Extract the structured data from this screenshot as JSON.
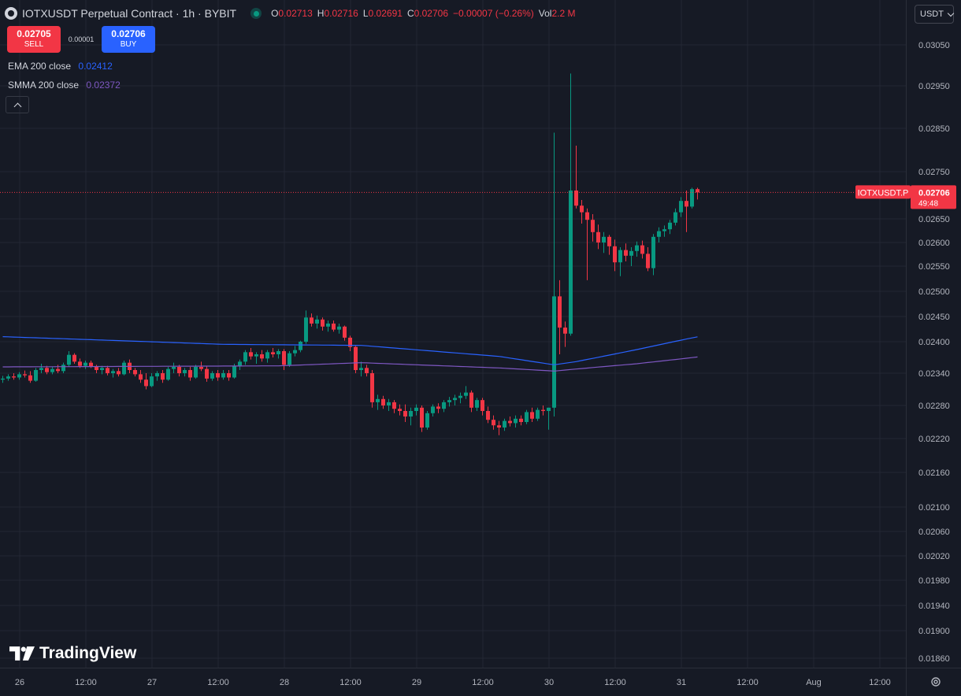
{
  "header": {
    "title": "IOTXUSDT Perpetual Contract · 1h · BYBIT",
    "ohlc": [
      {
        "key": "O",
        "value": "0.02713"
      },
      {
        "key": "H",
        "value": "0.02716"
      },
      {
        "key": "L",
        "value": "0.02691"
      },
      {
        "key": "C",
        "value": "0.02706"
      }
    ],
    "change": "−0.00007 (−0.26%)",
    "vol_label": "Vol",
    "vol_value": "2.2 M"
  },
  "trade": {
    "sell_price": "0.02705",
    "sell_label": "SELL",
    "spread": "0.00001",
    "buy_price": "0.02706",
    "buy_label": "BUY"
  },
  "indicators": [
    {
      "name": "EMA 200 close",
      "value": "0.02412",
      "color": "#2962ff"
    },
    {
      "name": "SMMA 200 close",
      "value": "0.02372",
      "color": "#7e57c2"
    }
  ],
  "currency": "USDT",
  "brand": "TradingView",
  "colors": {
    "up": "#089981",
    "down": "#f23645",
    "background": "#161a25",
    "grid": "#232733",
    "axis_text": "#b2b5be"
  },
  "chart_data": {
    "type": "candlestick",
    "symbol": "IOTXUSDT.P",
    "interval": "1h",
    "last_price": "0.02706",
    "countdown": "49:48",
    "y_ticks": [
      "0.03050",
      "0.02950",
      "0.02850",
      "0.02750",
      "0.02650",
      "0.02600",
      "0.02550",
      "0.02500",
      "0.02450",
      "0.02400",
      "0.02340",
      "0.02280",
      "0.02220",
      "0.02160",
      "0.02100",
      "0.02060",
      "0.02020",
      "0.01980",
      "0.01940",
      "0.01900",
      "0.01860"
    ],
    "x_ticks": [
      "26",
      "12:00",
      "27",
      "12:00",
      "28",
      "12:00",
      "29",
      "12:00",
      "30",
      "12:00",
      "31",
      "12:00",
      "Aug",
      "12:00"
    ],
    "grid": true,
    "candles": [
      {
        "o": 0.02328,
        "h": 0.02335,
        "l": 0.02322,
        "c": 0.0233
      },
      {
        "o": 0.0233,
        "h": 0.02338,
        "l": 0.02326,
        "c": 0.02334
      },
      {
        "o": 0.02334,
        "h": 0.0234,
        "l": 0.02328,
        "c": 0.02332
      },
      {
        "o": 0.02332,
        "h": 0.02342,
        "l": 0.02328,
        "c": 0.02338
      },
      {
        "o": 0.02338,
        "h": 0.02345,
        "l": 0.02332,
        "c": 0.02336
      },
      {
        "o": 0.02336,
        "h": 0.02344,
        "l": 0.02322,
        "c": 0.02326
      },
      {
        "o": 0.02326,
        "h": 0.0235,
        "l": 0.02324,
        "c": 0.02346
      },
      {
        "o": 0.02346,
        "h": 0.02358,
        "l": 0.0234,
        "c": 0.0235
      },
      {
        "o": 0.0235,
        "h": 0.02354,
        "l": 0.02338,
        "c": 0.02342
      },
      {
        "o": 0.02342,
        "h": 0.02352,
        "l": 0.02338,
        "c": 0.02348
      },
      {
        "o": 0.02348,
        "h": 0.02356,
        "l": 0.0234,
        "c": 0.02344
      },
      {
        "o": 0.02344,
        "h": 0.0236,
        "l": 0.0234,
        "c": 0.02356
      },
      {
        "o": 0.02356,
        "h": 0.02382,
        "l": 0.02352,
        "c": 0.02375
      },
      {
        "o": 0.02375,
        "h": 0.02378,
        "l": 0.02358,
        "c": 0.02362
      },
      {
        "o": 0.02362,
        "h": 0.02368,
        "l": 0.0235,
        "c": 0.02354
      },
      {
        "o": 0.02354,
        "h": 0.02364,
        "l": 0.02348,
        "c": 0.0236
      },
      {
        "o": 0.0236,
        "h": 0.02364,
        "l": 0.0235,
        "c": 0.02352
      },
      {
        "o": 0.02352,
        "h": 0.02356,
        "l": 0.0234,
        "c": 0.02346
      },
      {
        "o": 0.02346,
        "h": 0.02354,
        "l": 0.02338,
        "c": 0.0235
      },
      {
        "o": 0.0235,
        "h": 0.02354,
        "l": 0.02336,
        "c": 0.0234
      },
      {
        "o": 0.0234,
        "h": 0.02348,
        "l": 0.02332,
        "c": 0.02344
      },
      {
        "o": 0.02344,
        "h": 0.0235,
        "l": 0.02334,
        "c": 0.02338
      },
      {
        "o": 0.02338,
        "h": 0.02364,
        "l": 0.02336,
        "c": 0.0236
      },
      {
        "o": 0.0236,
        "h": 0.02366,
        "l": 0.0234,
        "c": 0.02346
      },
      {
        "o": 0.02346,
        "h": 0.0235,
        "l": 0.02334,
        "c": 0.02338
      },
      {
        "o": 0.02338,
        "h": 0.02346,
        "l": 0.02322,
        "c": 0.02328
      },
      {
        "o": 0.02328,
        "h": 0.0234,
        "l": 0.0231,
        "c": 0.02316
      },
      {
        "o": 0.02316,
        "h": 0.0234,
        "l": 0.02314,
        "c": 0.02334
      },
      {
        "o": 0.02334,
        "h": 0.02344,
        "l": 0.02326,
        "c": 0.0234
      },
      {
        "o": 0.0234,
        "h": 0.02346,
        "l": 0.02322,
        "c": 0.02328
      },
      {
        "o": 0.02328,
        "h": 0.02352,
        "l": 0.02326,
        "c": 0.02348
      },
      {
        "o": 0.02348,
        "h": 0.0236,
        "l": 0.0234,
        "c": 0.02352
      },
      {
        "o": 0.02352,
        "h": 0.02356,
        "l": 0.02334,
        "c": 0.0234
      },
      {
        "o": 0.0234,
        "h": 0.0235,
        "l": 0.02334,
        "c": 0.02346
      },
      {
        "o": 0.02346,
        "h": 0.02352,
        "l": 0.02326,
        "c": 0.02332
      },
      {
        "o": 0.02332,
        "h": 0.02356,
        "l": 0.0233,
        "c": 0.02352
      },
      {
        "o": 0.02352,
        "h": 0.02362,
        "l": 0.02344,
        "c": 0.02348
      },
      {
        "o": 0.02348,
        "h": 0.02354,
        "l": 0.02324,
        "c": 0.0233
      },
      {
        "o": 0.0233,
        "h": 0.02344,
        "l": 0.02326,
        "c": 0.0234
      },
      {
        "o": 0.0234,
        "h": 0.02346,
        "l": 0.02326,
        "c": 0.02332
      },
      {
        "o": 0.02332,
        "h": 0.02346,
        "l": 0.02328,
        "c": 0.0234
      },
      {
        "o": 0.0234,
        "h": 0.02346,
        "l": 0.02326,
        "c": 0.02332
      },
      {
        "o": 0.02332,
        "h": 0.02358,
        "l": 0.0233,
        "c": 0.02354
      },
      {
        "o": 0.02354,
        "h": 0.02366,
        "l": 0.02346,
        "c": 0.02362
      },
      {
        "o": 0.02362,
        "h": 0.02384,
        "l": 0.02356,
        "c": 0.0238
      },
      {
        "o": 0.0238,
        "h": 0.02388,
        "l": 0.02366,
        "c": 0.02372
      },
      {
        "o": 0.02372,
        "h": 0.0238,
        "l": 0.02358,
        "c": 0.02376
      },
      {
        "o": 0.02376,
        "h": 0.02384,
        "l": 0.02362,
        "c": 0.02368
      },
      {
        "o": 0.02368,
        "h": 0.02384,
        "l": 0.0236,
        "c": 0.0238
      },
      {
        "o": 0.0238,
        "h": 0.02388,
        "l": 0.0237,
        "c": 0.02376
      },
      {
        "o": 0.02376,
        "h": 0.02386,
        "l": 0.02368,
        "c": 0.02382
      },
      {
        "o": 0.02382,
        "h": 0.02386,
        "l": 0.02346,
        "c": 0.02356
      },
      {
        "o": 0.02356,
        "h": 0.02382,
        "l": 0.02352,
        "c": 0.02378
      },
      {
        "o": 0.02378,
        "h": 0.02392,
        "l": 0.02372,
        "c": 0.02384
      },
      {
        "o": 0.02384,
        "h": 0.02402,
        "l": 0.0238,
        "c": 0.024
      },
      {
        "o": 0.024,
        "h": 0.02462,
        "l": 0.02396,
        "c": 0.02448
      },
      {
        "o": 0.02448,
        "h": 0.02456,
        "l": 0.0243,
        "c": 0.02436
      },
      {
        "o": 0.02436,
        "h": 0.02452,
        "l": 0.02426,
        "c": 0.02444
      },
      {
        "o": 0.02444,
        "h": 0.02448,
        "l": 0.02422,
        "c": 0.0243
      },
      {
        "o": 0.0243,
        "h": 0.02442,
        "l": 0.0242,
        "c": 0.02436
      },
      {
        "o": 0.02436,
        "h": 0.02442,
        "l": 0.0242,
        "c": 0.02424
      },
      {
        "o": 0.02424,
        "h": 0.02436,
        "l": 0.02416,
        "c": 0.0243
      },
      {
        "o": 0.0243,
        "h": 0.02432,
        "l": 0.02402,
        "c": 0.02408
      },
      {
        "o": 0.02408,
        "h": 0.02412,
        "l": 0.02382,
        "c": 0.0239
      },
      {
        "o": 0.0239,
        "h": 0.02392,
        "l": 0.0234,
        "c": 0.02346
      },
      {
        "o": 0.02346,
        "h": 0.02362,
        "l": 0.02334,
        "c": 0.0235
      },
      {
        "o": 0.0235,
        "h": 0.02356,
        "l": 0.02334,
        "c": 0.0234
      },
      {
        "o": 0.0234,
        "h": 0.02346,
        "l": 0.02276,
        "c": 0.02286
      },
      {
        "o": 0.02286,
        "h": 0.023,
        "l": 0.02272,
        "c": 0.02292
      },
      {
        "o": 0.02292,
        "h": 0.02298,
        "l": 0.02274,
        "c": 0.0228
      },
      {
        "o": 0.0228,
        "h": 0.02292,
        "l": 0.0227,
        "c": 0.02286
      },
      {
        "o": 0.02286,
        "h": 0.0229,
        "l": 0.02266,
        "c": 0.02274
      },
      {
        "o": 0.02274,
        "h": 0.02282,
        "l": 0.02262,
        "c": 0.0227
      },
      {
        "o": 0.0227,
        "h": 0.02282,
        "l": 0.0225,
        "c": 0.0226
      },
      {
        "o": 0.0226,
        "h": 0.02276,
        "l": 0.02244,
        "c": 0.0227
      },
      {
        "o": 0.0227,
        "h": 0.02282,
        "l": 0.02262,
        "c": 0.02276
      },
      {
        "o": 0.02276,
        "h": 0.0228,
        "l": 0.02232,
        "c": 0.0224
      },
      {
        "o": 0.0224,
        "h": 0.0227,
        "l": 0.02236,
        "c": 0.02266
      },
      {
        "o": 0.02266,
        "h": 0.02282,
        "l": 0.0226,
        "c": 0.02278
      },
      {
        "o": 0.02278,
        "h": 0.02284,
        "l": 0.02266,
        "c": 0.02274
      },
      {
        "o": 0.02274,
        "h": 0.0229,
        "l": 0.02268,
        "c": 0.02286
      },
      {
        "o": 0.02286,
        "h": 0.02296,
        "l": 0.02278,
        "c": 0.0229
      },
      {
        "o": 0.0229,
        "h": 0.023,
        "l": 0.0228,
        "c": 0.02294
      },
      {
        "o": 0.02294,
        "h": 0.02304,
        "l": 0.02284,
        "c": 0.02298
      },
      {
        "o": 0.02298,
        "h": 0.02316,
        "l": 0.02292,
        "c": 0.02304
      },
      {
        "o": 0.02304,
        "h": 0.02308,
        "l": 0.02268,
        "c": 0.02276
      },
      {
        "o": 0.02276,
        "h": 0.02294,
        "l": 0.0227,
        "c": 0.0229
      },
      {
        "o": 0.0229,
        "h": 0.02294,
        "l": 0.02262,
        "c": 0.0227
      },
      {
        "o": 0.0227,
        "h": 0.02278,
        "l": 0.02248,
        "c": 0.02254
      },
      {
        "o": 0.02254,
        "h": 0.02262,
        "l": 0.02236,
        "c": 0.02244
      },
      {
        "o": 0.02244,
        "h": 0.02252,
        "l": 0.02226,
        "c": 0.0224
      },
      {
        "o": 0.0224,
        "h": 0.02256,
        "l": 0.02234,
        "c": 0.02252
      },
      {
        "o": 0.02252,
        "h": 0.0226,
        "l": 0.02242,
        "c": 0.02248
      },
      {
        "o": 0.02248,
        "h": 0.02262,
        "l": 0.0224,
        "c": 0.02256
      },
      {
        "o": 0.02256,
        "h": 0.02262,
        "l": 0.02244,
        "c": 0.0225
      },
      {
        "o": 0.0225,
        "h": 0.02272,
        "l": 0.02246,
        "c": 0.02268
      },
      {
        "o": 0.02268,
        "h": 0.02276,
        "l": 0.0225,
        "c": 0.02256
      },
      {
        "o": 0.02256,
        "h": 0.02276,
        "l": 0.02252,
        "c": 0.02272
      },
      {
        "o": 0.02272,
        "h": 0.0228,
        "l": 0.02262,
        "c": 0.0227
      },
      {
        "o": 0.0227,
        "h": 0.02276,
        "l": 0.02236,
        "c": 0.02276
      },
      {
        "o": 0.02276,
        "h": 0.0284,
        "l": 0.0226,
        "c": 0.0249
      },
      {
        "o": 0.0249,
        "h": 0.02522,
        "l": 0.02376,
        "c": 0.02428
      },
      {
        "o": 0.02428,
        "h": 0.0244,
        "l": 0.0239,
        "c": 0.02416
      },
      {
        "o": 0.02416,
        "h": 0.0298,
        "l": 0.02412,
        "c": 0.0271
      },
      {
        "o": 0.0271,
        "h": 0.0281,
        "l": 0.02672,
        "c": 0.02678
      },
      {
        "o": 0.02678,
        "h": 0.0269,
        "l": 0.0264,
        "c": 0.02664
      },
      {
        "o": 0.02664,
        "h": 0.02672,
        "l": 0.02522,
        "c": 0.02648
      },
      {
        "o": 0.02648,
        "h": 0.0266,
        "l": 0.02602,
        "c": 0.02622
      },
      {
        "o": 0.02622,
        "h": 0.02638,
        "l": 0.02586,
        "c": 0.026
      },
      {
        "o": 0.026,
        "h": 0.02622,
        "l": 0.02578,
        "c": 0.02612
      },
      {
        "o": 0.02612,
        "h": 0.02616,
        "l": 0.02574,
        "c": 0.02592
      },
      {
        "o": 0.02592,
        "h": 0.02606,
        "l": 0.0254,
        "c": 0.02558
      },
      {
        "o": 0.02558,
        "h": 0.0259,
        "l": 0.0253,
        "c": 0.02584
      },
      {
        "o": 0.02584,
        "h": 0.02598,
        "l": 0.0256,
        "c": 0.02572
      },
      {
        "o": 0.02572,
        "h": 0.0259,
        "l": 0.0255,
        "c": 0.02582
      },
      {
        "o": 0.02582,
        "h": 0.02602,
        "l": 0.0257,
        "c": 0.02594
      },
      {
        "o": 0.02594,
        "h": 0.02604,
        "l": 0.02566,
        "c": 0.02576
      },
      {
        "o": 0.02576,
        "h": 0.0259,
        "l": 0.0254,
        "c": 0.02546
      },
      {
        "o": 0.02546,
        "h": 0.02618,
        "l": 0.02532,
        "c": 0.02612
      },
      {
        "o": 0.02612,
        "h": 0.02632,
        "l": 0.026,
        "c": 0.02624
      },
      {
        "o": 0.02624,
        "h": 0.02636,
        "l": 0.02612,
        "c": 0.02628
      },
      {
        "o": 0.02628,
        "h": 0.02648,
        "l": 0.02618,
        "c": 0.02642
      },
      {
        "o": 0.02642,
        "h": 0.02672,
        "l": 0.02636,
        "c": 0.02664
      },
      {
        "o": 0.02664,
        "h": 0.02696,
        "l": 0.02654,
        "c": 0.02688
      },
      {
        "o": 0.02688,
        "h": 0.0271,
        "l": 0.02622,
        "c": 0.02676
      },
      {
        "o": 0.02676,
        "h": 0.02716,
        "l": 0.02672,
        "c": 0.02713
      },
      {
        "o": 0.02713,
        "h": 0.02716,
        "l": 0.02691,
        "c": 0.02706
      }
    ],
    "ema200": [
      {
        "i": 0,
        "v": 0.0241
      },
      {
        "i": 40,
        "v": 0.02395
      },
      {
        "i": 65,
        "v": 0.02393
      },
      {
        "i": 90,
        "v": 0.02372
      },
      {
        "i": 100,
        "v": 0.02356
      },
      {
        "i": 104,
        "v": 0.02362
      },
      {
        "i": 115,
        "v": 0.02385
      },
      {
        "i": 127,
        "v": 0.02412
      }
    ],
    "smma200": [
      {
        "i": 0,
        "v": 0.02352
      },
      {
        "i": 50,
        "v": 0.02354
      },
      {
        "i": 65,
        "v": 0.0236
      },
      {
        "i": 90,
        "v": 0.0235
      },
      {
        "i": 100,
        "v": 0.02344
      },
      {
        "i": 104,
        "v": 0.02348
      },
      {
        "i": 115,
        "v": 0.02358
      },
      {
        "i": 127,
        "v": 0.02372
      }
    ]
  }
}
